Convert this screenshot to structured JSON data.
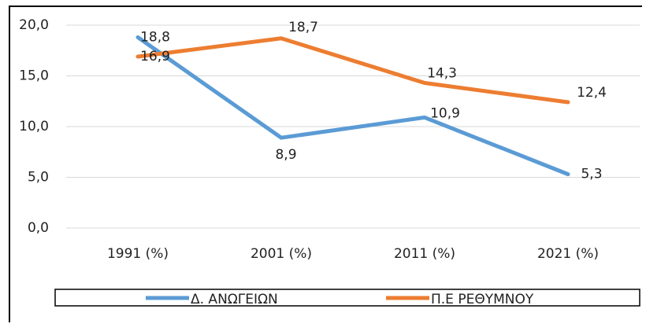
{
  "chart_data": {
    "type": "line",
    "categories": [
      "1991 (%)",
      "2001 (%)",
      "2011 (%)",
      "2021 (%)"
    ],
    "series": [
      {
        "name": "Δ. ΑΝΩΓΕΙΩΝ",
        "color": "#5b9bd5",
        "values": [
          18.8,
          8.9,
          10.9,
          5.3
        ],
        "value_labels": [
          "18,8",
          "8,9",
          "10,9",
          "5,3"
        ]
      },
      {
        "name": "Π.Ε ΡΕΘΥΜΝΟΥ",
        "color": "#ed7d31",
        "values": [
          16.9,
          18.7,
          14.3,
          12.4
        ],
        "value_labels": [
          "16,9",
          "18,7",
          "14,3",
          "12,4"
        ]
      }
    ],
    "ylim": [
      0,
      20
    ],
    "yticks": [
      {
        "value": 0,
        "label": "0,0"
      },
      {
        "value": 5,
        "label": "5,0"
      },
      {
        "value": 10,
        "label": "10,0"
      },
      {
        "value": 15,
        "label": "15,0"
      },
      {
        "value": 20,
        "label": "20,0"
      }
    ],
    "grid": true,
    "legend": "bottom"
  }
}
